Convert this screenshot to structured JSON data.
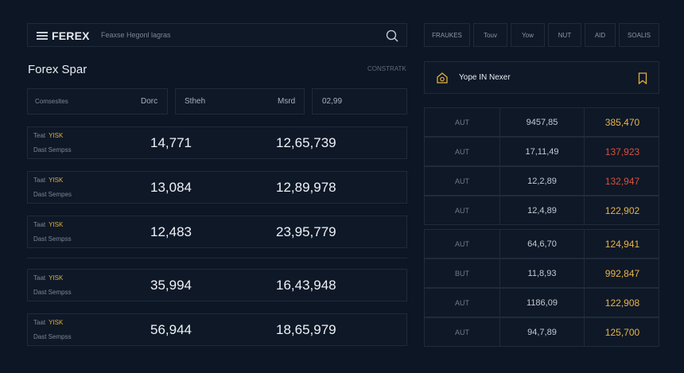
{
  "header": {
    "logo": "FEREX",
    "search_placeholder": "Feaxse Hegonl lagras"
  },
  "tabs": [
    {
      "label": "FRAUKES"
    },
    {
      "label": "Touv"
    },
    {
      "label": "Yow"
    },
    {
      "label": "NUT"
    },
    {
      "label": "AID"
    },
    {
      "label": "SOALIS"
    }
  ],
  "page_title": "Forex Spar",
  "top_right_label": "CONSTRATK",
  "filters": {
    "f1_label": "Comsesltes",
    "f1_value": "Dorc",
    "f2_label": "Stheh",
    "f2_value": "Msrd",
    "f3_value": "02,99"
  },
  "rows": [
    {
      "label1": "Teat",
      "tag": "YISK",
      "label2": "Dast  Sempss",
      "v1": "14,771",
      "v2": "12,65,739"
    },
    {
      "label1": "Taat",
      "tag": "YISK",
      "label2": "Dast  Sempes",
      "v1": "13,084",
      "v2": "12,89,978"
    },
    {
      "label1": "Taat",
      "tag": "YISK",
      "label2": "Dast  Sempss",
      "v1": "12,483",
      "v2": "23,95,779"
    },
    {
      "label1": "Taat",
      "tag": "YISK",
      "label2": "Dast  Sempss",
      "v1": "35,994",
      "v2": "16,43,948"
    },
    {
      "label1": "Taat",
      "tag": "YISK",
      "label2": "Dast  Sempss",
      "v1": "56,944",
      "v2": "18,65,979"
    }
  ],
  "watchlist": {
    "title": "Yope IN Nexer"
  },
  "table": [
    {
      "c1": "AUT",
      "c2": "9457,85",
      "c3": "385,470",
      "color": "#e9b34a"
    },
    {
      "c1": "AUT",
      "c2": "17,11,49",
      "c3": "137,923",
      "color": "#d9503a"
    },
    {
      "c1": "AUT",
      "c2": "12,2,89",
      "c3": "132,947",
      "color": "#d9503a"
    },
    {
      "c1": "AUT",
      "c2": "12,4,89",
      "c3": "122,902",
      "color": "#e9b34a"
    },
    {
      "c1": "AUT",
      "c2": "64,6,70",
      "c3": "124,941",
      "color": "#e9b34a"
    },
    {
      "c1": "BUT",
      "c2": "11,8,93",
      "c3": "992,847",
      "color": "#e9b34a"
    },
    {
      "c1": "AUT",
      "c2": "1186,09",
      "c3": "122,908",
      "color": "#e9b34a"
    },
    {
      "c1": "AUT",
      "c2": "94,7,89",
      "c3": "125,700",
      "color": "#e9b34a"
    }
  ]
}
